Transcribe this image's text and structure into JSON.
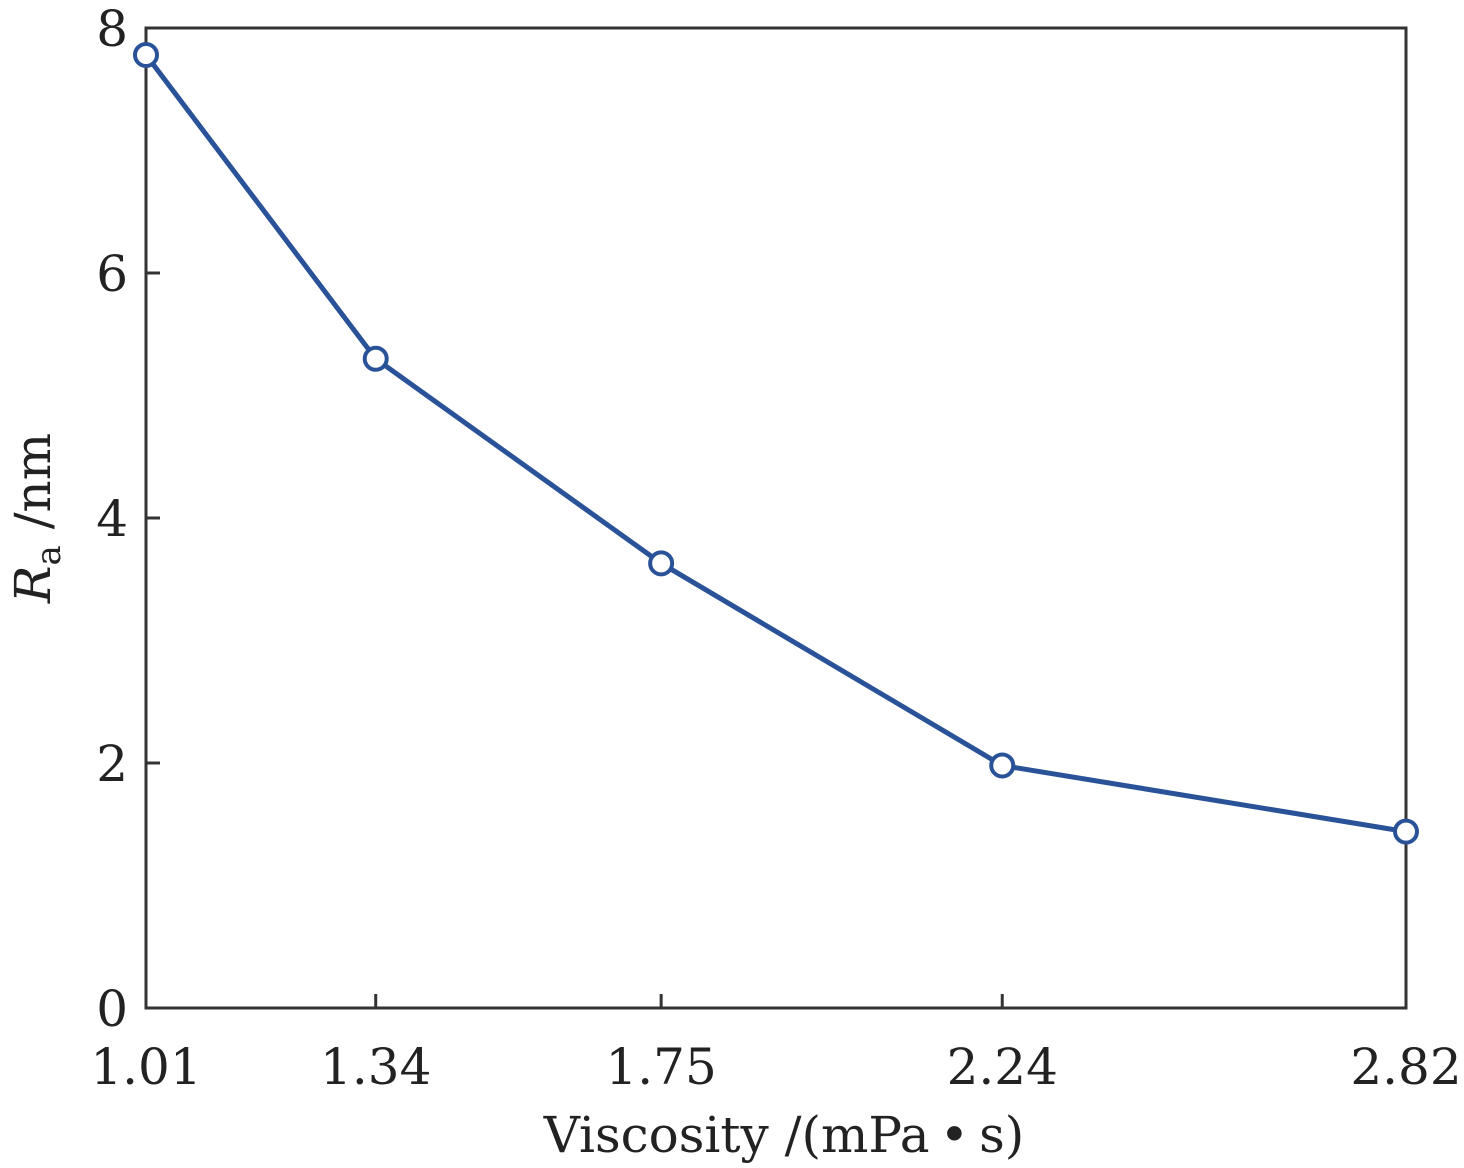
{
  "chart_data": {
    "type": "line",
    "title": "",
    "xlabel": "Viscosity /(mPa • s)",
    "ylabel": {
      "symbol": "R",
      "subscript": "a",
      "unit": " /nm"
    },
    "x": [
      1.01,
      1.34,
      1.75,
      2.24,
      2.82
    ],
    "xticks": [
      "1.01",
      "1.34",
      "1.75",
      "2.24",
      "2.82"
    ],
    "xlim": [
      1.01,
      2.82
    ],
    "yticks": [
      "0",
      "2",
      "4",
      "6",
      "8"
    ],
    "ylim": [
      0,
      8
    ],
    "series": [
      {
        "values": [
          7.78,
          5.3,
          3.63,
          1.98,
          1.44
        ],
        "color": "#2a5298",
        "marker": "open-circle"
      }
    ],
    "grid": false,
    "legend": "none"
  }
}
